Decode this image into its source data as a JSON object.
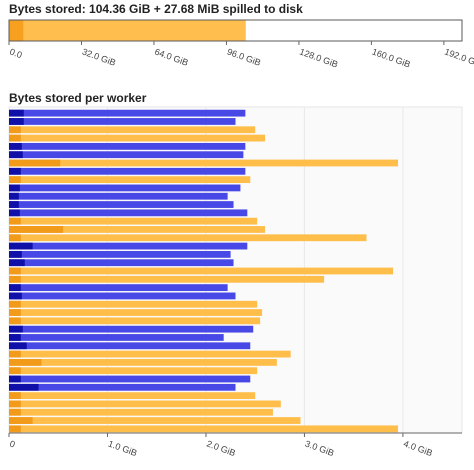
{
  "chart_data": [
    {
      "type": "bar",
      "orientation": "horizontal",
      "stacked": true,
      "title": "Bytes stored: 104.36 GiB + 27.68 MiB spilled to disk",
      "xlabel": "",
      "ylabel": "",
      "xlim": [
        0,
        200
      ],
      "x_ticks": [
        0,
        32,
        64,
        96,
        128,
        160,
        192
      ],
      "x_tick_labels": [
        "0.0",
        "32.0 GiB",
        "64.0 GiB",
        "96.0 GiB",
        "128.0 GiB",
        "160.0 GiB",
        "192.0 GiB"
      ],
      "series": [
        {
          "color": "#f79f1f",
          "values": [
            6.5
          ]
        },
        {
          "color": "#ffbe4d",
          "values": [
            97.9
          ]
        },
        {
          "color": "#ffd699",
          "values": [
            0.03
          ]
        }
      ],
      "grid": false,
      "legend": "none",
      "border_color": "#5a5a5a"
    },
    {
      "type": "bar",
      "orientation": "horizontal",
      "stacked": true,
      "title": "Bytes stored per worker",
      "xlabel": "",
      "ylabel": "",
      "xlim": [
        0,
        4.6
      ],
      "x_ticks": [
        0,
        1,
        2,
        3,
        4
      ],
      "x_tick_labels": [
        "0",
        "1.0 GiB",
        "2.0 GiB",
        "3.0 GiB",
        "4.0 GiB"
      ],
      "grid": true,
      "legend": "none",
      "series_colors": {
        "managed_dark": [
          "#1a1ab0",
          "#e8900f"
        ],
        "managed_light": [
          "#5555ee",
          "#ffbf4d"
        ]
      },
      "workers": [
        {
          "state": "blue",
          "first": 0.15,
          "total": 2.4
        },
        {
          "state": "blue",
          "first": 0.15,
          "total": 2.3
        },
        {
          "state": "orange",
          "first": 0.12,
          "total": 2.5
        },
        {
          "state": "orange",
          "first": 0.12,
          "total": 2.6
        },
        {
          "state": "blue",
          "first": 0.13,
          "total": 2.4
        },
        {
          "state": "blue",
          "first": 0.14,
          "total": 2.38
        },
        {
          "state": "orange",
          "first": 0.52,
          "total": 3.95
        },
        {
          "state": "blue",
          "first": 0.12,
          "total": 2.4
        },
        {
          "state": "orange",
          "first": 0.12,
          "total": 2.45
        },
        {
          "state": "blue",
          "first": 0.11,
          "total": 2.35
        },
        {
          "state": "blue",
          "first": 0.1,
          "total": 2.22
        },
        {
          "state": "blue",
          "first": 0.1,
          "total": 2.28
        },
        {
          "state": "blue",
          "first": 0.11,
          "total": 2.42
        },
        {
          "state": "orange",
          "first": 0.12,
          "total": 2.52
        },
        {
          "state": "orange",
          "first": 0.55,
          "total": 2.6
        },
        {
          "state": "orange",
          "first": 0.12,
          "total": 3.63
        },
        {
          "state": "blue",
          "first": 0.24,
          "total": 2.42
        },
        {
          "state": "blue",
          "first": 0.13,
          "total": 2.25
        },
        {
          "state": "blue",
          "first": 0.16,
          "total": 2.28
        },
        {
          "state": "orange",
          "first": 0.12,
          "total": 3.9
        },
        {
          "state": "orange",
          "first": 0.12,
          "total": 3.2
        },
        {
          "state": "blue",
          "first": 0.12,
          "total": 2.22
        },
        {
          "state": "blue",
          "first": 0.13,
          "total": 2.3
        },
        {
          "state": "orange",
          "first": 0.12,
          "total": 2.52
        },
        {
          "state": "orange",
          "first": 0.12,
          "total": 2.57
        },
        {
          "state": "orange",
          "first": 0.12,
          "total": 2.55
        },
        {
          "state": "blue",
          "first": 0.14,
          "total": 2.48
        },
        {
          "state": "blue",
          "first": 0.12,
          "total": 2.18
        },
        {
          "state": "blue",
          "first": 0.18,
          "total": 2.45
        },
        {
          "state": "orange",
          "first": 0.12,
          "total": 2.86
        },
        {
          "state": "orange",
          "first": 0.33,
          "total": 2.72
        },
        {
          "state": "orange",
          "first": 0.12,
          "total": 2.52
        },
        {
          "state": "blue",
          "first": 0.12,
          "total": 2.45
        },
        {
          "state": "blue",
          "first": 0.3,
          "total": 2.3
        },
        {
          "state": "orange",
          "first": 0.12,
          "total": 2.5
        },
        {
          "state": "orange",
          "first": 0.12,
          "total": 2.76
        },
        {
          "state": "orange",
          "first": 0.12,
          "total": 2.68
        },
        {
          "state": "orange",
          "first": 0.24,
          "total": 2.96
        },
        {
          "state": "orange",
          "first": 0.12,
          "total": 3.95
        }
      ]
    }
  ]
}
